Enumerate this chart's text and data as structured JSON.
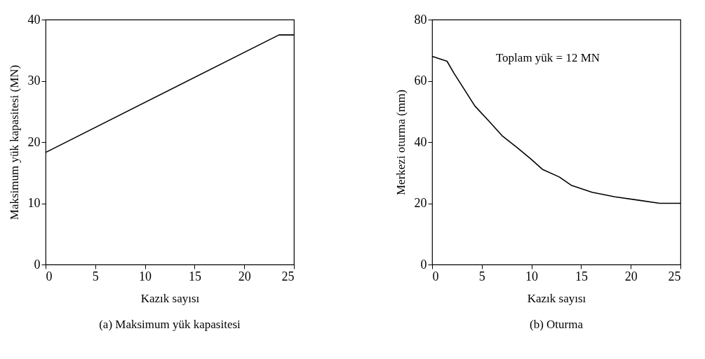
{
  "chart_data": [
    {
      "type": "line",
      "title": "(a) Maksimum yük kapasitesi",
      "xlabel": "Kazık sayısı",
      "ylabel": "Maksimum yük kapasitesi (MN)",
      "x": [
        0,
        23.5,
        25
      ],
      "series": [
        {
          "color": "#000000",
          "values": [
            18.3,
            37.5,
            37.5
          ]
        }
      ],
      "xlim": [
        0,
        25
      ],
      "xticks": [
        0,
        5,
        10,
        15,
        20,
        25
      ],
      "ylim": [
        0,
        40
      ],
      "yticks": [
        0,
        10,
        20,
        30,
        40
      ],
      "grid": false
    },
    {
      "type": "line",
      "title": "(b) Oturma",
      "xlabel": "Kazık sayısı",
      "ylabel": "Merkezi oturma (mm)",
      "annotations": [
        "Toplam yük = 12 MN"
      ],
      "x": [
        0,
        1.5,
        2.2,
        3.1,
        4.3,
        5.7,
        7.1,
        8.6,
        10,
        11.1,
        12.8,
        14,
        16.1,
        18.4,
        20.8,
        22.9,
        25
      ],
      "series": [
        {
          "color": "#000000",
          "values": [
            68.0,
            66.4,
            62.5,
            57.9,
            51.8,
            46.9,
            41.9,
            38.1,
            34.3,
            31.1,
            28.6,
            25.9,
            23.6,
            22.1,
            21.0,
            20.0,
            20.0
          ]
        }
      ],
      "xlim": [
        0,
        25
      ],
      "xticks": [
        0,
        5,
        10,
        15,
        20,
        25
      ],
      "ylim": [
        0,
        80
      ],
      "yticks": [
        0,
        20,
        40,
        60,
        80
      ],
      "grid": false
    }
  ]
}
